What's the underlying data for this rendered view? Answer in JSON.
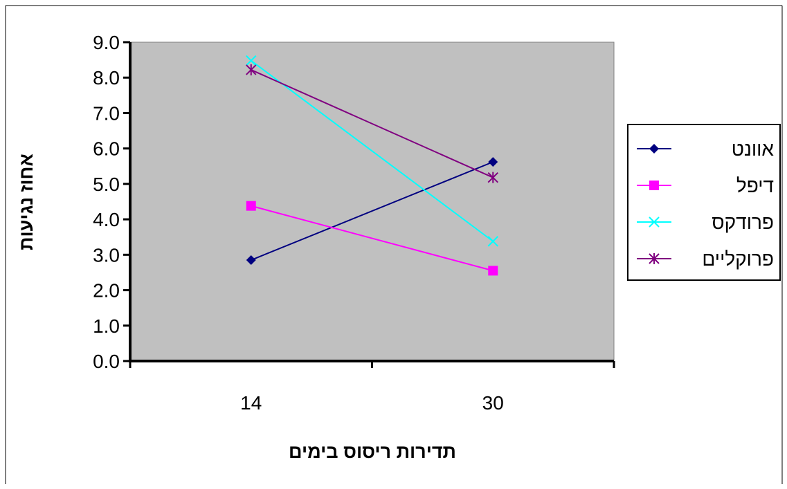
{
  "chart_data": {
    "type": "line",
    "categories": [
      "14",
      "30"
    ],
    "ylabel": "אחוז נגיעות",
    "xlabel": "תדירות ריסוס בימים",
    "ylim": [
      0,
      9
    ],
    "ytick_step": 1,
    "ytick_labels": [
      "0.0",
      "1.0",
      "2.0",
      "3.0",
      "4.0",
      "5.0",
      "6.0",
      "7.0",
      "8.0",
      "9.0"
    ],
    "plot_background": "#c0c0c0",
    "grid": false,
    "legend_position": "right",
    "series": [
      {
        "name": "אוונט",
        "values": [
          2.85,
          5.62
        ],
        "color": "#000080",
        "marker": "diamond"
      },
      {
        "name": "דיפל",
        "values": [
          4.38,
          2.55
        ],
        "color": "#ff00ff",
        "marker": "square"
      },
      {
        "name": "פרודקס",
        "values": [
          8.48,
          3.38
        ],
        "color": "#00ffff",
        "marker": "x"
      },
      {
        "name": "פרוקליים",
        "values": [
          8.22,
          5.18
        ],
        "color": "#800080",
        "marker": "star"
      }
    ]
  }
}
